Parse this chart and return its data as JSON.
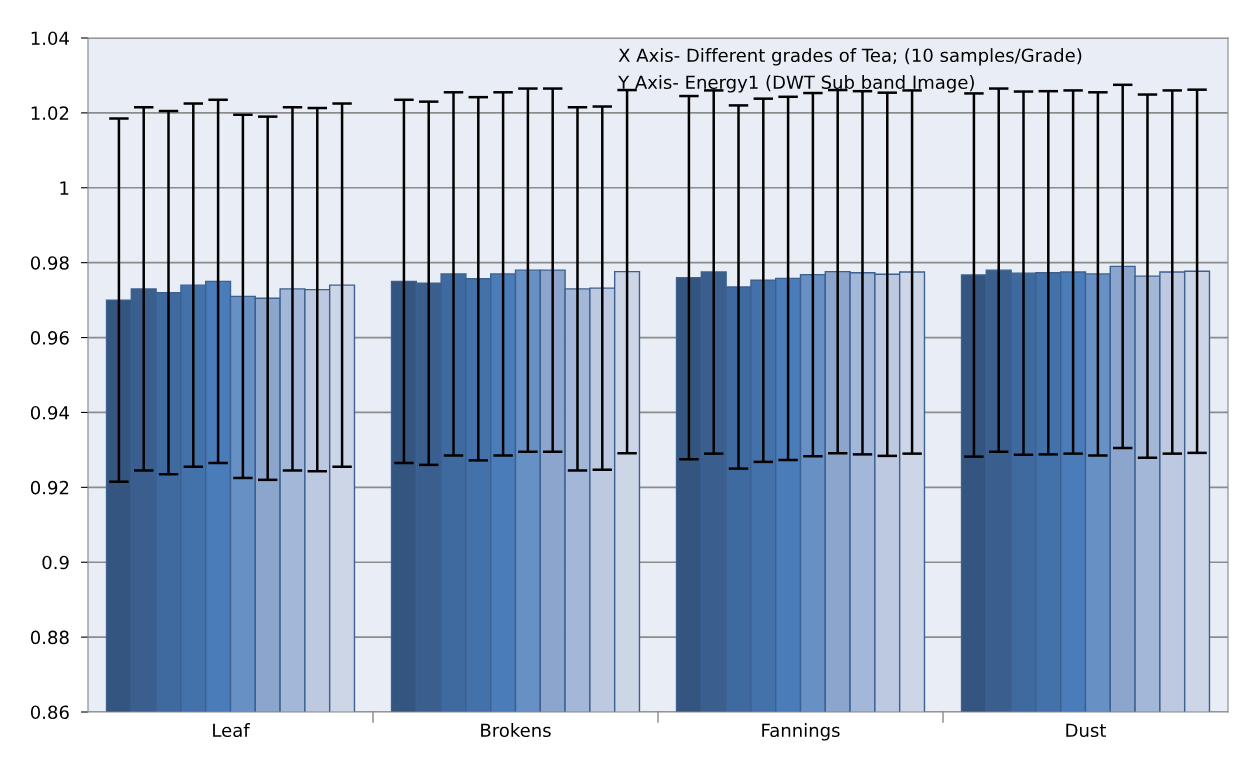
{
  "chart_data": {
    "type": "bar",
    "categories": [
      "Leaf",
      "Brokens",
      "Fannings",
      "Dust"
    ],
    "series": [
      {
        "color": "#33557f",
        "values": [
          0.97,
          0.975,
          0.976,
          0.9767
        ],
        "errors": [
          0.0485,
          0.0485,
          0.0485,
          0.0485
        ]
      },
      {
        "color": "#3a5f8f",
        "values": [
          0.973,
          0.9745,
          0.9775,
          0.978
        ],
        "errors": [
          0.0485,
          0.0485,
          0.0485,
          0.0485
        ]
      },
      {
        "color": "#3f6a9f",
        "values": [
          0.972,
          0.977,
          0.9735,
          0.9772
        ],
        "errors": [
          0.0485,
          0.0485,
          0.0485,
          0.0485
        ]
      },
      {
        "color": "#4371aa",
        "values": [
          0.974,
          0.9757,
          0.9753,
          0.9773
        ],
        "errors": [
          0.0485,
          0.0485,
          0.0485,
          0.0485
        ]
      },
      {
        "color": "#4a7cb9",
        "values": [
          0.975,
          0.977,
          0.9758,
          0.9775
        ],
        "errors": [
          0.0485,
          0.0485,
          0.0485,
          0.0485
        ]
      },
      {
        "color": "#6790c4",
        "values": [
          0.971,
          0.978,
          0.9768,
          0.977
        ],
        "errors": [
          0.0485,
          0.0485,
          0.0485,
          0.0485
        ]
      },
      {
        "color": "#8ba5cd",
        "values": [
          0.9705,
          0.978,
          0.9776,
          0.979
        ],
        "errors": [
          0.0485,
          0.0485,
          0.0485,
          0.0485
        ]
      },
      {
        "color": "#a3b7d9",
        "values": [
          0.973,
          0.973,
          0.9773,
          0.9764
        ],
        "errors": [
          0.0485,
          0.0485,
          0.0485,
          0.0485
        ]
      },
      {
        "color": "#bcc9e1",
        "values": [
          0.9728,
          0.9732,
          0.9769,
          0.9775
        ],
        "errors": [
          0.0485,
          0.0485,
          0.0485,
          0.0485
        ]
      },
      {
        "color": "#cdd6e7",
        "values": [
          0.974,
          0.9776,
          0.9775,
          0.9777
        ],
        "errors": [
          0.0485,
          0.0485,
          0.0485,
          0.0485
        ]
      }
    ],
    "ylim": [
      0.86,
      1.04
    ],
    "yticks": [
      0.86,
      0.88,
      0.9,
      0.92,
      0.94,
      0.96,
      0.98,
      1,
      1.02,
      1.04
    ],
    "grid": "y",
    "legend": false,
    "annotations": [
      "X Axis- Different grades of Tea; (10 samples/Grade)",
      "Y Axis- Energy1 (DWT Sub band Image)"
    ]
  }
}
